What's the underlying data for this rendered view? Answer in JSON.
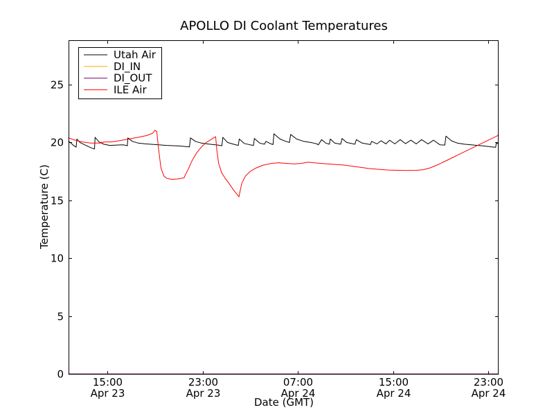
{
  "figure": {
    "background": "#ffffff",
    "frame_color": "#000000"
  },
  "chart_data": {
    "type": "line",
    "title": "APOLLO DI Coolant Temperatures",
    "xlabel": "Date (GMT)",
    "ylabel": "Temperature (C)",
    "x_unit": "hours since Apr 23 00:00 GMT",
    "xlim": [
      11.74,
      47.87
    ],
    "ylim": [
      0,
      28.84
    ],
    "grid": false,
    "legend_position": "upper-left",
    "yticks": [
      {
        "value": 0,
        "label": "0"
      },
      {
        "value": 5,
        "label": "5"
      },
      {
        "value": 10,
        "label": "10"
      },
      {
        "value": 15,
        "label": "15"
      },
      {
        "value": 20,
        "label": "20"
      },
      {
        "value": 25,
        "label": "25"
      }
    ],
    "xticks": [
      {
        "value": 15,
        "line1": "15:00",
        "line2": "Apr 23"
      },
      {
        "value": 23,
        "line1": "23:00",
        "line2": "Apr 23"
      },
      {
        "value": 31,
        "line1": "07:00",
        "line2": "Apr 24"
      },
      {
        "value": 39,
        "line1": "15:00",
        "line2": "Apr 24"
      },
      {
        "value": 47,
        "line1": "23:00",
        "line2": "Apr 24"
      }
    ],
    "series": [
      {
        "name": "Utah Air",
        "color": "#000000",
        "points": [
          [
            11.74,
            20.1
          ],
          [
            11.95,
            19.95
          ],
          [
            12.15,
            19.75
          ],
          [
            12.3,
            19.65
          ],
          [
            12.38,
            19.6
          ],
          [
            12.44,
            20.3
          ],
          [
            12.7,
            20.0
          ],
          [
            13.1,
            19.8
          ],
          [
            13.5,
            19.6
          ],
          [
            13.85,
            19.45
          ],
          [
            13.92,
            19.45
          ],
          [
            13.97,
            20.45
          ],
          [
            14.3,
            20.05
          ],
          [
            14.7,
            19.85
          ],
          [
            15.2,
            19.75
          ],
          [
            15.8,
            19.78
          ],
          [
            16.3,
            19.8
          ],
          [
            16.6,
            19.75
          ],
          [
            16.68,
            19.72
          ],
          [
            16.72,
            20.4
          ],
          [
            17.1,
            20.1
          ],
          [
            17.6,
            19.95
          ],
          [
            18.2,
            19.88
          ],
          [
            19.0,
            19.82
          ],
          [
            20.0,
            19.75
          ],
          [
            21.0,
            19.7
          ],
          [
            21.9,
            19.62
          ],
          [
            21.98,
            20.4
          ],
          [
            22.4,
            20.1
          ],
          [
            22.9,
            19.95
          ],
          [
            23.6,
            19.85
          ],
          [
            24.3,
            19.78
          ],
          [
            24.62,
            19.72
          ],
          [
            24.7,
            20.45
          ],
          [
            25.1,
            20.0
          ],
          [
            25.6,
            19.85
          ],
          [
            26.0,
            19.75
          ],
          [
            26.08,
            20.3
          ],
          [
            26.5,
            19.92
          ],
          [
            27.0,
            19.8
          ],
          [
            27.28,
            19.75
          ],
          [
            27.35,
            20.35
          ],
          [
            27.8,
            19.95
          ],
          [
            28.2,
            19.85
          ],
          [
            28.33,
            20.1
          ],
          [
            28.7,
            19.9
          ],
          [
            28.92,
            19.82
          ],
          [
            28.99,
            20.75
          ],
          [
            29.5,
            20.3
          ],
          [
            30.0,
            20.1
          ],
          [
            30.3,
            20.0
          ],
          [
            30.4,
            20.7
          ],
          [
            30.9,
            20.3
          ],
          [
            31.5,
            20.1
          ],
          [
            32.2,
            19.98
          ],
          [
            32.6,
            19.88
          ],
          [
            32.72,
            19.8
          ],
          [
            33.0,
            20.25
          ],
          [
            33.35,
            19.95
          ],
          [
            33.65,
            19.85
          ],
          [
            33.73,
            20.3
          ],
          [
            34.1,
            19.95
          ],
          [
            34.6,
            19.85
          ],
          [
            34.72,
            20.35
          ],
          [
            35.1,
            20.0
          ],
          [
            35.8,
            19.85
          ],
          [
            35.92,
            20.25
          ],
          [
            36.4,
            19.95
          ],
          [
            37.1,
            19.82
          ],
          [
            37.2,
            20.1
          ],
          [
            37.65,
            19.88
          ],
          [
            38.0,
            20.15
          ],
          [
            38.4,
            19.88
          ],
          [
            38.72,
            20.2
          ],
          [
            39.15,
            19.88
          ],
          [
            39.6,
            20.25
          ],
          [
            40.05,
            19.9
          ],
          [
            40.5,
            20.2
          ],
          [
            40.95,
            19.88
          ],
          [
            41.4,
            20.25
          ],
          [
            41.95,
            19.88
          ],
          [
            42.4,
            20.2
          ],
          [
            42.95,
            19.8
          ],
          [
            43.35,
            19.78
          ],
          [
            43.45,
            20.55
          ],
          [
            43.9,
            20.15
          ],
          [
            44.4,
            19.95
          ],
          [
            45.0,
            19.85
          ],
          [
            45.8,
            19.78
          ],
          [
            46.6,
            19.7
          ],
          [
            47.3,
            19.62
          ],
          [
            47.62,
            19.58
          ],
          [
            47.68,
            19.95
          ],
          [
            47.87,
            19.88
          ]
        ]
      },
      {
        "name": "DI_IN",
        "color": "#ffa500",
        "points": [
          [
            11.74,
            0
          ],
          [
            47.87,
            0
          ]
        ]
      },
      {
        "name": "DI_OUT",
        "color": "#800080",
        "points": [
          [
            11.74,
            0
          ],
          [
            47.87,
            0
          ]
        ]
      },
      {
        "name": "ILE Air",
        "color": "#ff0000",
        "points": [
          [
            11.74,
            20.4
          ],
          [
            12.3,
            20.2
          ],
          [
            12.9,
            20.05
          ],
          [
            13.6,
            19.95
          ],
          [
            14.4,
            19.95
          ],
          [
            14.5,
            20.05
          ],
          [
            14.58,
            19.9
          ],
          [
            14.66,
            20.05
          ],
          [
            15.3,
            20.05
          ],
          [
            16.0,
            20.15
          ],
          [
            16.8,
            20.3
          ],
          [
            17.6,
            20.45
          ],
          [
            18.3,
            20.6
          ],
          [
            18.8,
            20.8
          ],
          [
            19.0,
            21.05
          ],
          [
            19.15,
            20.95
          ],
          [
            19.3,
            19.5
          ],
          [
            19.5,
            17.8
          ],
          [
            19.75,
            17.1
          ],
          [
            20.0,
            16.9
          ],
          [
            20.4,
            16.82
          ],
          [
            20.9,
            16.85
          ],
          [
            21.2,
            16.9
          ],
          [
            21.45,
            16.95
          ],
          [
            21.55,
            17.2
          ],
          [
            21.8,
            17.7
          ],
          [
            22.1,
            18.4
          ],
          [
            22.5,
            19.1
          ],
          [
            22.9,
            19.6
          ],
          [
            23.3,
            20.0
          ],
          [
            23.7,
            20.25
          ],
          [
            24.0,
            20.45
          ],
          [
            24.1,
            20.5
          ],
          [
            24.2,
            19.3
          ],
          [
            24.35,
            18.2
          ],
          [
            24.6,
            17.4
          ],
          [
            24.9,
            16.9
          ],
          [
            25.2,
            16.5
          ],
          [
            25.6,
            15.9
          ],
          [
            25.95,
            15.45
          ],
          [
            26.05,
            15.3
          ],
          [
            26.15,
            15.8
          ],
          [
            26.3,
            16.5
          ],
          [
            26.6,
            17.1
          ],
          [
            27.0,
            17.5
          ],
          [
            27.5,
            17.8
          ],
          [
            28.1,
            18.05
          ],
          [
            28.8,
            18.2
          ],
          [
            29.4,
            18.25
          ],
          [
            30.0,
            18.2
          ],
          [
            30.7,
            18.15
          ],
          [
            31.3,
            18.2
          ],
          [
            31.9,
            18.3
          ],
          [
            32.3,
            18.25
          ],
          [
            32.9,
            18.2
          ],
          [
            33.5,
            18.15
          ],
          [
            34.2,
            18.1
          ],
          [
            34.9,
            18.05
          ],
          [
            35.6,
            17.95
          ],
          [
            36.3,
            17.85
          ],
          [
            37.0,
            17.75
          ],
          [
            37.8,
            17.68
          ],
          [
            38.6,
            17.62
          ],
          [
            39.4,
            17.6
          ],
          [
            40.2,
            17.58
          ],
          [
            41.0,
            17.6
          ],
          [
            41.55,
            17.65
          ],
          [
            42.1,
            17.8
          ],
          [
            42.7,
            18.05
          ],
          [
            43.3,
            18.35
          ],
          [
            43.9,
            18.65
          ],
          [
            44.5,
            18.95
          ],
          [
            45.1,
            19.25
          ],
          [
            45.7,
            19.55
          ],
          [
            46.3,
            19.85
          ],
          [
            46.9,
            20.15
          ],
          [
            47.4,
            20.4
          ],
          [
            47.7,
            20.55
          ],
          [
            47.87,
            20.65
          ]
        ]
      }
    ]
  }
}
